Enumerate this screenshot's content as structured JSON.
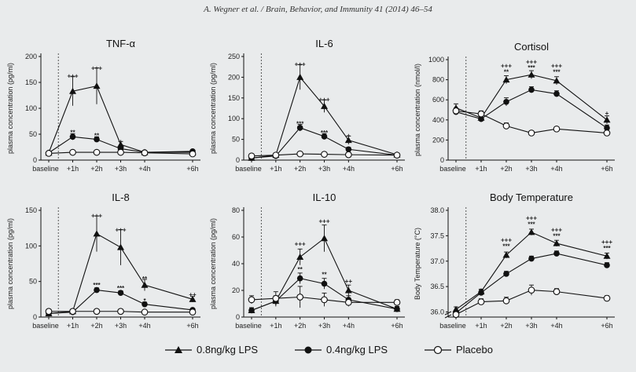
{
  "header": "A. Wegner et al. / Brain, Behavior, and Immunity 41 (2014) 46–54",
  "legend": [
    {
      "label": "0.8ng/kg LPS",
      "marker": "triangle"
    },
    {
      "label": "0.4ng/kg LPS",
      "marker": "filled-circle"
    },
    {
      "label": "Placebo",
      "marker": "open-circle"
    }
  ],
  "chart_data": [
    {
      "type": "line",
      "title": "TNF-α",
      "ylabel": "plasma concentration (pg/ml)",
      "categories": [
        "baseline",
        "+1h",
        "+2h",
        "+3h",
        "+4h",
        "+6h"
      ],
      "x": [
        0,
        1,
        2,
        3,
        4,
        6
      ],
      "ylim": [
        0,
        200
      ],
      "yticks": [
        "0",
        "50",
        "100",
        "150",
        "200"
      ],
      "ytick_values": [
        0,
        50,
        100,
        150,
        200
      ],
      "series": [
        {
          "name": "0.8ng/kg LPS",
          "marker": "triangle",
          "values": [
            14,
            133,
            143,
            30,
            15,
            15
          ],
          "err": [
            3,
            28,
            35,
            6,
            3,
            3
          ]
        },
        {
          "name": "0.4ng/kg LPS",
          "marker": "filled-circle",
          "values": [
            14,
            45,
            40,
            22,
            15,
            17
          ],
          "err": [
            3,
            6,
            5,
            4,
            3,
            3
          ]
        },
        {
          "name": "Placebo",
          "marker": "open-circle",
          "values": [
            13,
            15,
            15,
            15,
            14,
            12
          ],
          "err": [
            2,
            2,
            2,
            2,
            2,
            2
          ]
        }
      ],
      "annotations": [
        {
          "x": 1,
          "y": 163,
          "text": "+++"
        },
        {
          "x": 2,
          "y": 178,
          "text": "+++"
        },
        {
          "x": 3,
          "y": 36,
          "text": "+"
        },
        {
          "x": 1,
          "y": 54,
          "text": "**"
        },
        {
          "x": 2,
          "y": 48,
          "text": "**"
        }
      ]
    },
    {
      "type": "line",
      "title": "IL-6",
      "ylabel": "plasma concentration (pg/ml)",
      "categories": [
        "baseline",
        "+1h",
        "+2h",
        "+3h",
        "+4h",
        "+6h"
      ],
      "x": [
        0,
        1,
        2,
        3,
        4,
        6
      ],
      "ylim": [
        0,
        250
      ],
      "yticks": [
        "0",
        "50",
        "100",
        "150",
        "200",
        "250"
      ],
      "ytick_values": [
        0,
        50,
        100,
        150,
        200,
        250
      ],
      "series": [
        {
          "name": "0.8ng/kg LPS",
          "marker": "triangle",
          "values": [
            5,
            12,
            200,
            130,
            48,
            13
          ],
          "err": [
            2,
            3,
            30,
            15,
            10,
            3
          ]
        },
        {
          "name": "0.4ng/kg LPS",
          "marker": "filled-circle",
          "values": [
            5,
            10,
            78,
            57,
            26,
            12
          ],
          "err": [
            2,
            2,
            8,
            7,
            5,
            2
          ]
        },
        {
          "name": "Placebo",
          "marker": "open-circle",
          "values": [
            10,
            12,
            15,
            14,
            13,
            12
          ],
          "err": [
            3,
            3,
            3,
            3,
            3,
            3
          ]
        }
      ],
      "annotations": [
        {
          "x": 2,
          "y": 232,
          "text": "+++"
        },
        {
          "x": 3,
          "y": 147,
          "text": "+++"
        },
        {
          "x": 4,
          "y": 60,
          "text": "+"
        },
        {
          "x": 2,
          "y": 88,
          "text": "***"
        },
        {
          "x": 3,
          "y": 66,
          "text": "***"
        }
      ]
    },
    {
      "type": "line",
      "title": "Cortisol",
      "ylabel": "plasma concentration (nmol/l)",
      "categories": [
        "baseline",
        "+1h",
        "+2h",
        "+3h",
        "+4h",
        "+6h"
      ],
      "x": [
        0,
        1,
        2,
        3,
        4,
        6
      ],
      "ylim": [
        0,
        1000
      ],
      "yticks": [
        "0",
        "200",
        "400",
        "600",
        "800",
        "1000"
      ],
      "ytick_values": [
        0,
        200,
        400,
        600,
        800,
        1000
      ],
      "series": [
        {
          "name": "0.8ng/kg LPS",
          "marker": "triangle",
          "values": [
            520,
            420,
            800,
            850,
            790,
            400
          ],
          "err": [
            40,
            40,
            40,
            40,
            40,
            40
          ]
        },
        {
          "name": "0.4ng/kg LPS",
          "marker": "filled-circle",
          "values": [
            480,
            410,
            580,
            700,
            660,
            320
          ],
          "err": [
            30,
            30,
            40,
            30,
            30,
            30
          ]
        },
        {
          "name": "Placebo",
          "marker": "open-circle",
          "values": [
            490,
            460,
            340,
            270,
            310,
            270
          ],
          "err": [
            30,
            30,
            30,
            20,
            20,
            20
          ]
        }
      ],
      "annotations": [
        {
          "x": 2,
          "y": 940,
          "text": "+++"
        },
        {
          "x": 2,
          "y": 880,
          "text": "**"
        },
        {
          "x": 3,
          "y": 980,
          "text": "+++"
        },
        {
          "x": 3,
          "y": 920,
          "text": "***"
        },
        {
          "x": 4,
          "y": 940,
          "text": "+++"
        },
        {
          "x": 4,
          "y": 880,
          "text": "***"
        },
        {
          "x": 6,
          "y": 470,
          "text": "+"
        }
      ]
    },
    {
      "type": "line",
      "title": "IL-8",
      "ylabel": "plasma concentration (pg/ml)",
      "categories": [
        "baseline",
        "+1h",
        "+2h",
        "+3h",
        "+4h",
        "+6h"
      ],
      "x": [
        0,
        1,
        2,
        3,
        4,
        6
      ],
      "ylim": [
        0,
        150
      ],
      "yticks": [
        "0",
        "50",
        "100",
        "150"
      ],
      "ytick_values": [
        0,
        50,
        100,
        150
      ],
      "series": [
        {
          "name": "0.8ng/kg LPS",
          "marker": "triangle",
          "values": [
            5,
            8,
            117,
            98,
            45,
            25
          ],
          "err": [
            2,
            2,
            25,
            25,
            8,
            4
          ]
        },
        {
          "name": "0.4ng/kg LPS",
          "marker": "filled-circle",
          "values": [
            5,
            7,
            38,
            34,
            18,
            10
          ],
          "err": [
            2,
            2,
            3,
            3,
            3,
            2
          ]
        },
        {
          "name": "Placebo",
          "marker": "open-circle",
          "values": [
            8,
            8,
            8,
            8,
            7,
            7
          ],
          "err": [
            2,
            2,
            2,
            2,
            2,
            2
          ]
        }
      ],
      "annotations": [
        {
          "x": 2,
          "y": 143,
          "text": "+++"
        },
        {
          "x": 3,
          "y": 123,
          "text": "+++"
        },
        {
          "x": 4,
          "y": 54,
          "text": "**"
        },
        {
          "x": 6,
          "y": 32,
          "text": "++"
        },
        {
          "x": 2,
          "y": 45,
          "text": "***"
        },
        {
          "x": 3,
          "y": 41,
          "text": "***"
        },
        {
          "x": 4,
          "y": 23,
          "text": "*"
        }
      ]
    },
    {
      "type": "line",
      "title": "IL-10",
      "ylabel": "plasma concentration (pg/ml)",
      "categories": [
        "baseline",
        "+1h",
        "+2h",
        "+3h",
        "+4h",
        "+6h"
      ],
      "x": [
        0,
        1,
        2,
        3,
        4,
        6
      ],
      "ylim": [
        0,
        80
      ],
      "yticks": [
        "0",
        "20",
        "40",
        "60",
        "80"
      ],
      "ytick_values": [
        0,
        20,
        40,
        60,
        80
      ],
      "series": [
        {
          "name": "0.8ng/kg LPS",
          "marker": "triangle",
          "values": [
            5,
            12,
            45,
            59,
            20,
            6
          ],
          "err": [
            2,
            4,
            6,
            10,
            4,
            2
          ]
        },
        {
          "name": "0.4ng/kg LPS",
          "marker": "filled-circle",
          "values": [
            5,
            12,
            29,
            25,
            13,
            6
          ],
          "err": [
            2,
            3,
            4,
            4,
            3,
            2
          ]
        },
        {
          "name": "Placebo",
          "marker": "open-circle",
          "values": [
            13,
            14,
            15,
            13,
            11,
            11
          ],
          "err": [
            3,
            5,
            8,
            5,
            3,
            2
          ]
        }
      ],
      "annotations": [
        {
          "x": 2,
          "y": 55,
          "text": "+++"
        },
        {
          "x": 3,
          "y": 72,
          "text": "+++"
        },
        {
          "x": 4,
          "y": 27,
          "text": "++"
        },
        {
          "x": 2,
          "y": 36,
          "text": "**"
        },
        {
          "x": 3,
          "y": 32,
          "text": "**"
        }
      ]
    },
    {
      "type": "line",
      "title": "Body Temperature",
      "ylabel": "Body Temperature (°C)",
      "categories": [
        "baseline",
        "+1h",
        "+2h",
        "+3h",
        "+4h",
        "+6h"
      ],
      "x": [
        0,
        1,
        2,
        3,
        4,
        6
      ],
      "ylim": [
        35.9,
        38.0
      ],
      "yticks": [
        "36.0",
        "36.5",
        "37.0",
        "37.5",
        "38.0"
      ],
      "ytick_values": [
        36.0,
        36.5,
        37.0,
        37.5,
        38.0
      ],
      "series": [
        {
          "name": "0.8ng/kg LPS",
          "marker": "triangle",
          "values": [
            36.05,
            36.4,
            37.12,
            37.57,
            37.35,
            37.1
          ],
          "err": [
            0.05,
            0.05,
            0.06,
            0.06,
            0.06,
            0.06
          ]
        },
        {
          "name": "0.4ng/kg LPS",
          "marker": "filled-circle",
          "values": [
            35.98,
            36.38,
            36.75,
            37.05,
            37.15,
            36.92
          ],
          "err": [
            0.05,
            0.05,
            0.05,
            0.05,
            0.05,
            0.05
          ]
        },
        {
          "name": "Placebo",
          "marker": "open-circle",
          "values": [
            35.95,
            36.2,
            36.22,
            36.43,
            36.4,
            36.27
          ],
          "err": [
            0.05,
            0.06,
            0.07,
            0.1,
            0.06,
            0.05
          ]
        }
      ],
      "annotations": [
        {
          "x": 2,
          "y": 37.42,
          "text": "+++"
        },
        {
          "x": 2,
          "y": 37.3,
          "text": "***"
        },
        {
          "x": 3,
          "y": 37.85,
          "text": "+++"
        },
        {
          "x": 3,
          "y": 37.73,
          "text": "***"
        },
        {
          "x": 4,
          "y": 37.62,
          "text": "+++"
        },
        {
          "x": 4,
          "y": 37.5,
          "text": "***"
        },
        {
          "x": 6,
          "y": 37.38,
          "text": "+++"
        },
        {
          "x": 6,
          "y": 37.26,
          "text": "***"
        }
      ]
    }
  ]
}
